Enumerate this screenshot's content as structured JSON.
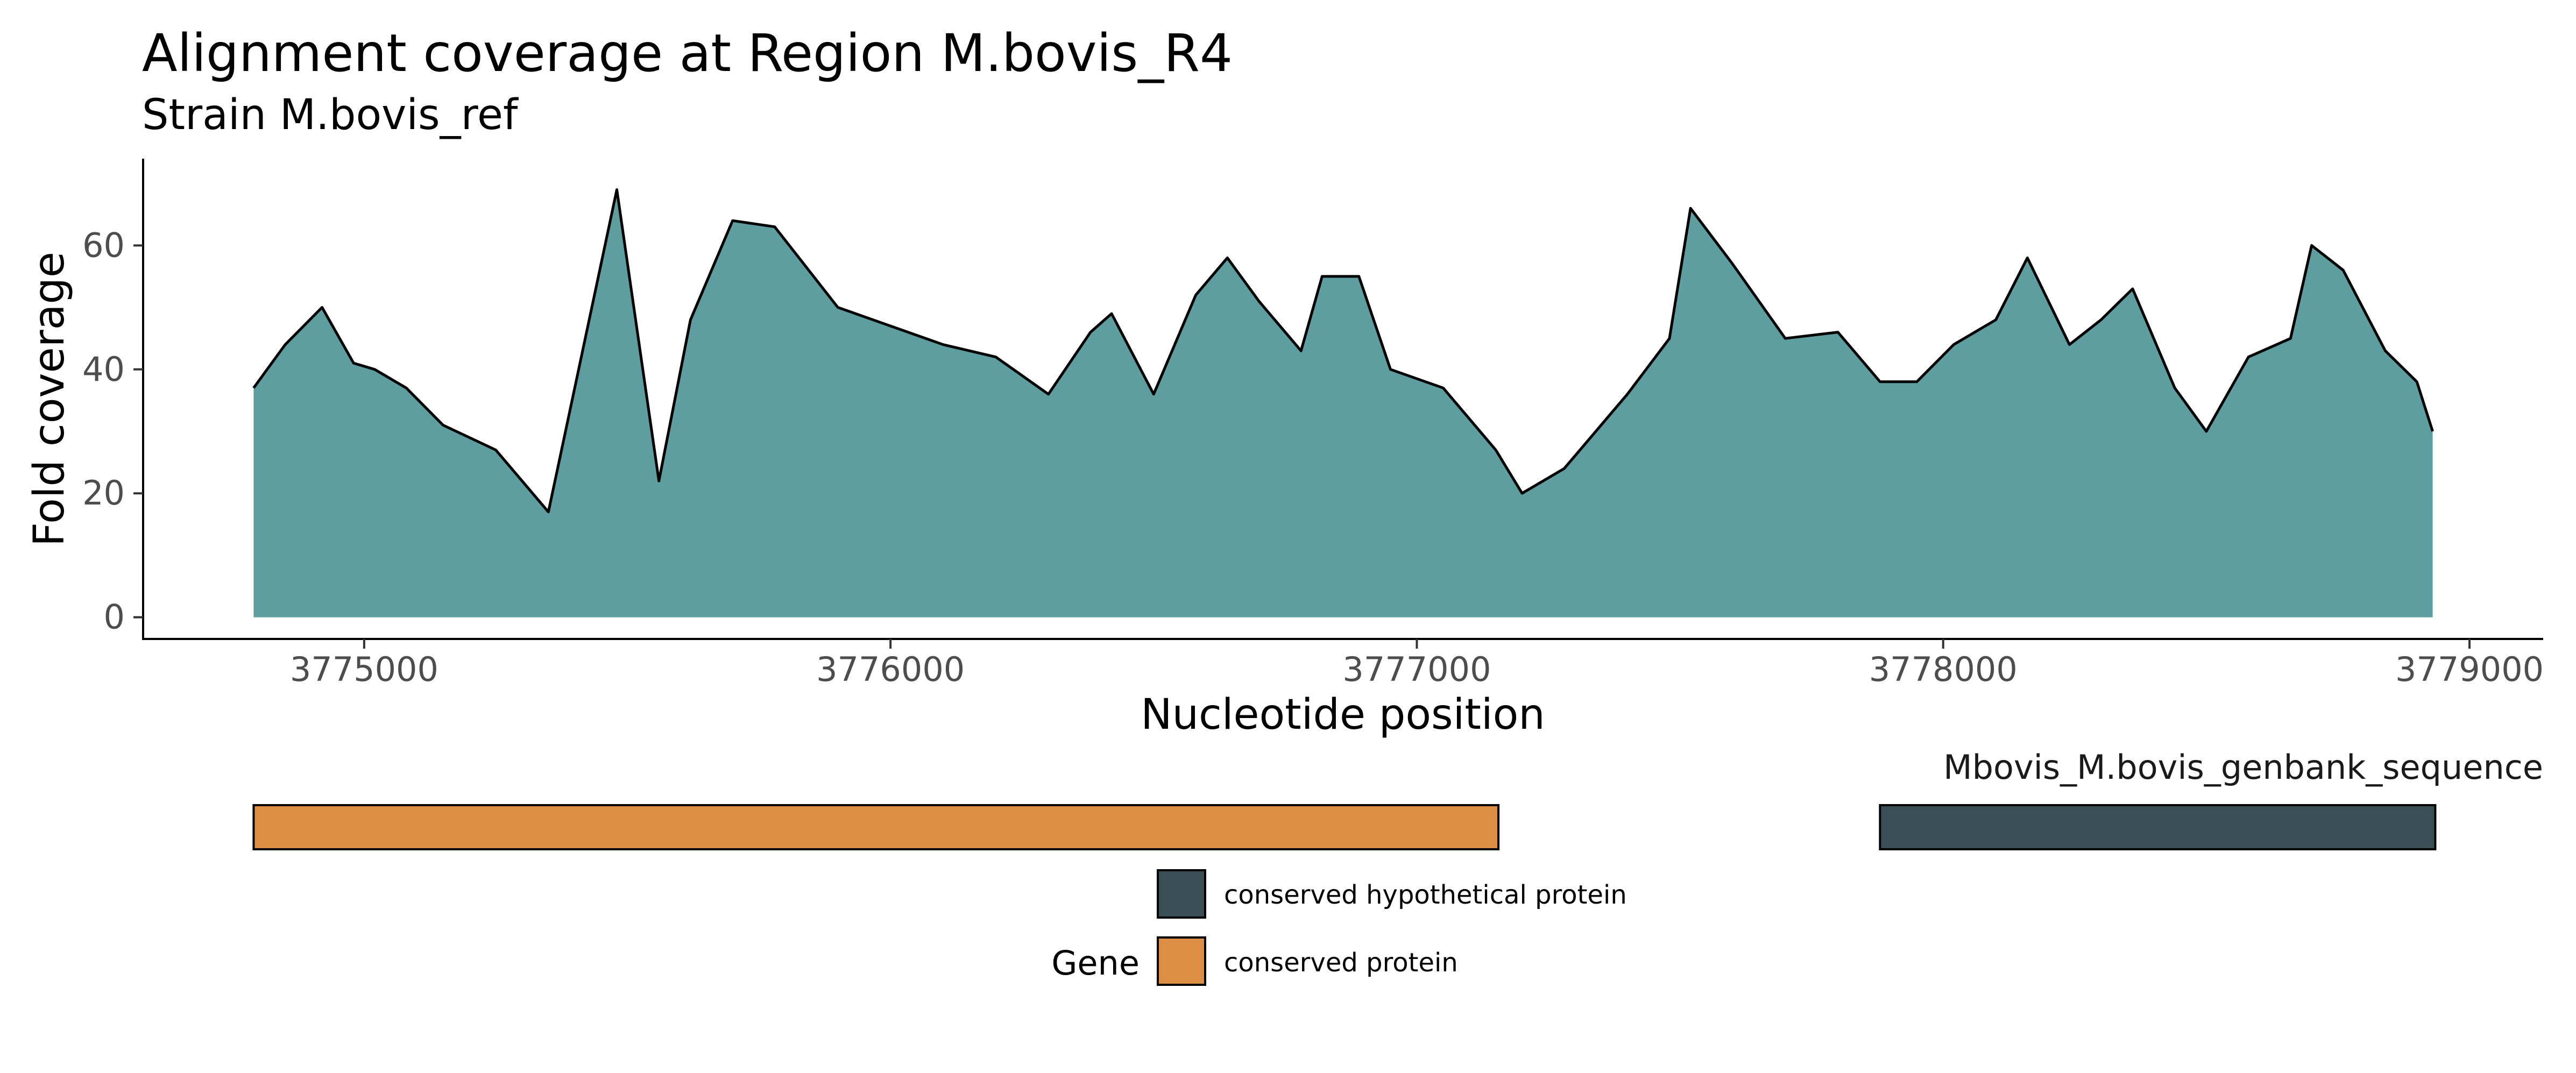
{
  "chart_data": {
    "type": "area",
    "title": "Alignment coverage at Region M.bovis_R4",
    "subtitle": "Strain M.bovis_ref",
    "xlabel": "Nucleotide position",
    "ylabel": "Fold coverage",
    "xlim": [
      3774580,
      3779140
    ],
    "ylim": [
      -3.5,
      74
    ],
    "x_ticks": [
      3775000,
      3776000,
      3777000,
      3778000,
      3779000
    ],
    "x_tick_labels": [
      "3775000",
      "3776000",
      "3777000",
      "3778000",
      "3779000"
    ],
    "y_ticks": [
      0,
      20,
      40,
      60
    ],
    "y_tick_labels": [
      "0",
      "20",
      "40",
      "60"
    ],
    "grid": false,
    "fill_color": "#5F9EA0",
    "line_color": "#000000",
    "series": [
      {
        "x": [
          3774790,
          3774850,
          3774920,
          3774980,
          3775020,
          3775080,
          3775150,
          3775250,
          3775350,
          3775480,
          3775560,
          3775620,
          3775700,
          3775780,
          3775900,
          3776000,
          3776100,
          3776200,
          3776300,
          3776380,
          3776420,
          3776500,
          3776580,
          3776640,
          3776700,
          3776780,
          3776820,
          3776890,
          3776950,
          3777050,
          3777150,
          3777200,
          3777280,
          3777400,
          3777480,
          3777520,
          3777600,
          3777700,
          3777800,
          3777880,
          3777950,
          3778020,
          3778100,
          3778160,
          3778240,
          3778300,
          3778360,
          3778440,
          3778500,
          3778580,
          3778660,
          3778700,
          3778760,
          3778840,
          3778900,
          3778930
        ],
        "y": [
          37,
          44,
          50,
          41,
          40,
          37,
          31,
          27,
          17,
          69,
          22,
          48,
          64,
          63,
          50,
          47,
          44,
          42,
          36,
          46,
          49,
          36,
          52,
          58,
          51,
          43,
          55,
          55,
          40,
          37,
          27,
          20,
          24,
          36,
          45,
          66,
          57,
          45,
          46,
          38,
          38,
          44,
          48,
          58,
          44,
          48,
          53,
          37,
          30,
          42,
          45,
          60,
          56,
          43,
          38,
          30
        ]
      }
    ]
  },
  "gene_track": {
    "label": "Mbovis_M.bovis_genbank_sequence",
    "genes": [
      {
        "start": 3774790,
        "end": 3777155,
        "category": "conserved protein"
      },
      {
        "start": 3777880,
        "end": 3778935,
        "category": "conserved hypothetical protein"
      }
    ]
  },
  "legend": {
    "title": "Gene",
    "items": [
      {
        "label": "conserved hypothetical protein",
        "color": "#3A4F55"
      },
      {
        "label": "conserved protein",
        "color": "#DD8E45"
      }
    ]
  }
}
